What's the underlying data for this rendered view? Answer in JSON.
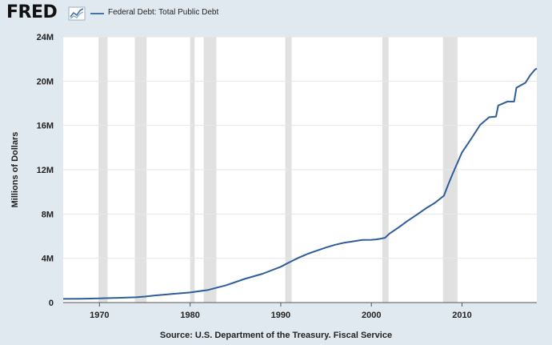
{
  "header": {
    "logo_text": "FRED",
    "logo_icon": "line-graph-icon",
    "legend_label": "Federal Debt: Total Public Debt",
    "legend_color": "#4572a7"
  },
  "footer": {
    "source": "Source: U.S. Department of the Treasury. Fiscal Service"
  },
  "chart_data": {
    "type": "line",
    "ylabel": "Millions of Dollars",
    "xlim": [
      1966,
      2018.25
    ],
    "ylim": [
      0,
      24
    ],
    "ytick_labels": [
      "0",
      "4M",
      "8M",
      "12M",
      "16M",
      "20M",
      "24M"
    ],
    "xtick_labels": [
      "1970",
      "1980",
      "1990",
      "2000",
      "2010"
    ],
    "grid": true,
    "recession_color": "#e1e1e1",
    "recessions": [
      [
        1969.9,
        1970.9
      ],
      [
        1973.9,
        1975.2
      ],
      [
        1980.0,
        1980.5
      ],
      [
        1981.5,
        1982.9
      ],
      [
        1990.5,
        1991.2
      ],
      [
        2001.2,
        2001.9
      ],
      [
        2007.9,
        2009.5
      ]
    ],
    "series": [
      {
        "name": "Federal Debt: Total Public Debt",
        "color": "#2f5d99",
        "x": [
          1966,
          1968,
          1970,
          1972,
          1974,
          1975,
          1976,
          1978,
          1980,
          1982,
          1984,
          1986,
          1988,
          1990,
          1991,
          1992,
          1993,
          1994,
          1995,
          1996,
          1997,
          1998,
          1999,
          2000,
          2000.5,
          2001,
          2001.5,
          2002,
          2003,
          2004,
          2005,
          2006,
          2007,
          2008,
          2008.5,
          2009,
          2010,
          2011,
          2012,
          2013,
          2013.75,
          2014,
          2015,
          2015.75,
          2016,
          2017,
          2017.5,
          2018,
          2018.25
        ],
        "y": [
          0.33,
          0.35,
          0.38,
          0.43,
          0.48,
          0.54,
          0.63,
          0.78,
          0.91,
          1.14,
          1.57,
          2.13,
          2.6,
          3.23,
          3.66,
          4.06,
          4.41,
          4.69,
          4.97,
          5.22,
          5.41,
          5.53,
          5.66,
          5.67,
          5.7,
          5.77,
          5.85,
          6.23,
          6.78,
          7.38,
          7.93,
          8.5,
          9.0,
          9.65,
          10.7,
          11.7,
          13.56,
          14.78,
          16.05,
          16.74,
          16.8,
          17.8,
          18.15,
          18.15,
          19.4,
          19.85,
          20.5,
          21.0,
          21.15
        ]
      }
    ]
  }
}
